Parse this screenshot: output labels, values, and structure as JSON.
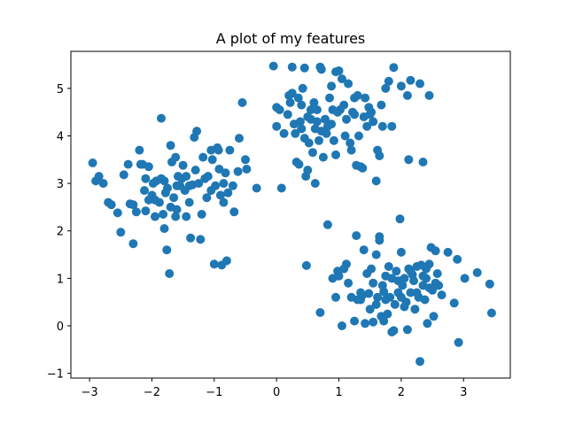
{
  "chart_data": {
    "type": "scatter",
    "title": "A plot of my features",
    "xlabel": "",
    "ylabel": "",
    "xlim": [
      -3.3,
      3.75
    ],
    "ylim": [
      -1.1,
      5.78
    ],
    "xticks": [
      -3,
      -2,
      -1,
      0,
      1,
      2,
      3
    ],
    "yticks": [
      -1,
      0,
      1,
      2,
      3,
      4,
      5
    ],
    "grid": false,
    "color": "#1f77b4",
    "series": [
      {
        "points": [
          [
            -2.95,
            3.43
          ],
          [
            -2.9,
            3.05
          ],
          [
            -2.85,
            3.15
          ],
          [
            -2.78,
            3.0
          ],
          [
            -2.7,
            2.6
          ],
          [
            -2.65,
            2.55
          ],
          [
            -2.55,
            2.38
          ],
          [
            -2.5,
            1.97
          ],
          [
            -2.45,
            3.18
          ],
          [
            -2.38,
            3.4
          ],
          [
            -2.35,
            2.57
          ],
          [
            -2.3,
            2.55
          ],
          [
            -2.3,
            1.73
          ],
          [
            -2.2,
            3.7
          ],
          [
            -2.18,
            3.4
          ],
          [
            -2.15,
            3.4
          ],
          [
            -2.12,
            2.85
          ],
          [
            -2.1,
            2.42
          ],
          [
            -2.1,
            3.1
          ],
          [
            -2.05,
            2.65
          ],
          [
            -2.0,
            2.75
          ],
          [
            -1.98,
            3.0
          ],
          [
            -1.95,
            2.3
          ],
          [
            -1.93,
            3.05
          ],
          [
            -1.88,
            2.6
          ],
          [
            -1.85,
            3.1
          ],
          [
            -1.82,
            2.35
          ],
          [
            -1.8,
            2.05
          ],
          [
            -1.8,
            3.05
          ],
          [
            -1.78,
            2.8
          ],
          [
            -1.76,
            1.6
          ],
          [
            -1.75,
            2.9
          ],
          [
            -1.72,
            1.1
          ],
          [
            -1.7,
            2.5
          ],
          [
            -1.68,
            3.45
          ],
          [
            -1.65,
            2.7
          ],
          [
            -1.62,
            2.3
          ],
          [
            -1.6,
            2.45
          ],
          [
            -1.58,
            3.15
          ],
          [
            -1.55,
            2.95
          ],
          [
            -1.52,
            3.1
          ],
          [
            -1.5,
            3.38
          ],
          [
            -1.47,
            2.85
          ],
          [
            -1.45,
            2.3
          ],
          [
            -1.4,
            2.6
          ],
          [
            -1.38,
            1.85
          ],
          [
            -1.35,
            2.97
          ],
          [
            -1.32,
            3.97
          ],
          [
            -1.3,
            3.28
          ],
          [
            -1.28,
            4.1
          ],
          [
            -1.25,
            3.0
          ],
          [
            -1.22,
            1.82
          ],
          [
            -1.2,
            2.35
          ],
          [
            -1.18,
            3.55
          ],
          [
            -1.15,
            3.1
          ],
          [
            -1.12,
            2.7
          ],
          [
            -1.1,
            3.15
          ],
          [
            -1.05,
            2.85
          ],
          [
            -1.03,
            3.5
          ],
          [
            -1.0,
            1.3
          ],
          [
            -0.98,
            2.95
          ],
          [
            -0.95,
            3.75
          ],
          [
            -0.93,
            3.7
          ],
          [
            -0.92,
            3.3
          ],
          [
            -0.9,
            2.75
          ],
          [
            -0.88,
            1.28
          ],
          [
            -0.85,
            3.0
          ],
          [
            -0.82,
            3.22
          ],
          [
            -0.8,
            1.37
          ],
          [
            -0.78,
            2.8
          ],
          [
            -0.75,
            3.7
          ],
          [
            -0.7,
            2.95
          ],
          [
            -0.68,
            2.4
          ],
          [
            -0.62,
            3.25
          ],
          [
            -0.6,
            3.95
          ],
          [
            -0.55,
            4.7
          ],
          [
            -0.5,
            3.5
          ],
          [
            -0.48,
            3.3
          ],
          [
            -0.32,
            2.9
          ],
          [
            -1.85,
            4.37
          ],
          [
            -1.7,
            3.8
          ],
          [
            -1.62,
            3.55
          ],
          [
            -2.05,
            3.35
          ],
          [
            -1.95,
            2.65
          ],
          [
            -1.45,
            3.15
          ],
          [
            -1.6,
            2.95
          ],
          [
            -2.25,
            2.4
          ],
          [
            -0.85,
            2.6
          ],
          [
            -1.05,
            3.7
          ],
          [
            -1.4,
            2.95
          ]
        ]
      },
      {
        "points": [
          [
            -0.05,
            5.47
          ],
          [
            0.0,
            4.6
          ],
          [
            0.05,
            4.55
          ],
          [
            0.0,
            4.2
          ],
          [
            0.08,
            2.9
          ],
          [
            0.12,
            4.05
          ],
          [
            0.18,
            4.45
          ],
          [
            0.2,
            4.85
          ],
          [
            0.22,
            4.7
          ],
          [
            0.25,
            4.9
          ],
          [
            0.25,
            5.45
          ],
          [
            0.28,
            4.25
          ],
          [
            0.3,
            4.05
          ],
          [
            0.32,
            3.45
          ],
          [
            0.35,
            4.8
          ],
          [
            0.36,
            3.4
          ],
          [
            0.38,
            4.3
          ],
          [
            0.4,
            4.15
          ],
          [
            0.42,
            5.0
          ],
          [
            0.45,
            5.43
          ],
          [
            0.45,
            3.95
          ],
          [
            0.47,
            3.15
          ],
          [
            0.5,
            4.4
          ],
          [
            0.5,
            3.28
          ],
          [
            0.52,
            3.85
          ],
          [
            0.55,
            4.55
          ],
          [
            0.55,
            4.35
          ],
          [
            0.58,
            3.65
          ],
          [
            0.6,
            4.7
          ],
          [
            0.62,
            4.15
          ],
          [
            0.62,
            3.0
          ],
          [
            0.65,
            4.55
          ],
          [
            0.68,
            3.9
          ],
          [
            0.7,
            5.45
          ],
          [
            0.72,
            5.4
          ],
          [
            0.72,
            4.1
          ],
          [
            0.75,
            3.55
          ],
          [
            0.78,
            4.35
          ],
          [
            0.8,
            4.05
          ],
          [
            0.82,
            4.2
          ],
          [
            0.85,
            4.8
          ],
          [
            0.88,
            5.05
          ],
          [
            0.9,
            4.55
          ],
          [
            0.92,
            3.9
          ],
          [
            0.95,
            3.6
          ],
          [
            0.95,
            5.35
          ],
          [
            0.98,
            4.5
          ],
          [
            1.0,
            5.37
          ],
          [
            1.02,
            4.55
          ],
          [
            1.05,
            5.2
          ],
          [
            1.08,
            4.65
          ],
          [
            1.1,
            4.0
          ],
          [
            1.12,
            4.35
          ],
          [
            1.15,
            5.1
          ],
          [
            1.18,
            3.85
          ],
          [
            1.2,
            3.7
          ],
          [
            1.22,
            4.5
          ],
          [
            1.25,
            4.8
          ],
          [
            1.28,
            3.38
          ],
          [
            1.3,
            4.85
          ],
          [
            1.32,
            4.0
          ],
          [
            1.35,
            3.35
          ],
          [
            1.38,
            3.32
          ],
          [
            1.4,
            4.4
          ],
          [
            1.42,
            4.8
          ],
          [
            1.45,
            4.2
          ],
          [
            1.5,
            4.45
          ],
          [
            1.52,
            4.5
          ],
          [
            1.55,
            4.3
          ],
          [
            1.6,
            3.05
          ],
          [
            1.62,
            3.7
          ],
          [
            1.65,
            3.58
          ],
          [
            1.7,
            4.2
          ],
          [
            1.75,
            5.0
          ],
          [
            1.8,
            5.15
          ],
          [
            1.85,
            4.2
          ],
          [
            1.88,
            5.44
          ],
          [
            2.0,
            5.05
          ],
          [
            2.1,
            4.85
          ],
          [
            2.12,
            3.5
          ],
          [
            2.15,
            5.17
          ],
          [
            2.3,
            5.1
          ],
          [
            2.35,
            3.45
          ],
          [
            2.45,
            4.85
          ],
          [
            1.48,
            4.6
          ],
          [
            0.88,
            4.25
          ],
          [
            1.25,
            4.45
          ],
          [
            0.4,
            4.65
          ],
          [
            0.65,
            4.3
          ],
          [
            1.68,
            4.65
          ]
        ]
      },
      {
        "points": [
          [
            0.48,
            1.27
          ],
          [
            0.7,
            0.28
          ],
          [
            0.82,
            2.13
          ],
          [
            0.9,
            1.0
          ],
          [
            0.95,
            0.6
          ],
          [
            0.98,
            1.15
          ],
          [
            1.0,
            1.05
          ],
          [
            1.05,
            0.0
          ],
          [
            1.08,
            1.2
          ],
          [
            1.12,
            1.3
          ],
          [
            1.15,
            0.9
          ],
          [
            1.2,
            0.6
          ],
          [
            1.25,
            0.1
          ],
          [
            1.28,
            1.9
          ],
          [
            1.3,
            0.55
          ],
          [
            1.35,
            0.7
          ],
          [
            1.38,
            0.65
          ],
          [
            1.4,
            1.6
          ],
          [
            1.42,
            0.05
          ],
          [
            1.45,
            1.1
          ],
          [
            1.48,
            0.68
          ],
          [
            1.5,
            0.35
          ],
          [
            1.52,
            1.2
          ],
          [
            1.55,
            0.08
          ],
          [
            1.6,
            1.5
          ],
          [
            1.62,
            0.6
          ],
          [
            1.65,
            1.88
          ],
          [
            1.65,
            1.8
          ],
          [
            1.68,
            0.2
          ],
          [
            1.7,
            0.85
          ],
          [
            1.72,
            0.1
          ],
          [
            1.75,
            1.05
          ],
          [
            1.78,
            0.25
          ],
          [
            1.8,
            1.25
          ],
          [
            1.82,
            0.6
          ],
          [
            1.85,
            1.0
          ],
          [
            1.88,
            -0.1
          ],
          [
            1.9,
            0.45
          ],
          [
            1.92,
            1.15
          ],
          [
            1.95,
            0.7
          ],
          [
            1.98,
            2.25
          ],
          [
            2.0,
            1.55
          ],
          [
            2.02,
            0.85
          ],
          [
            2.05,
            1.0
          ],
          [
            2.08,
            0.5
          ],
          [
            2.1,
            -0.08
          ],
          [
            2.12,
            1.2
          ],
          [
            2.15,
            0.7
          ],
          [
            2.18,
            1.08
          ],
          [
            2.2,
            0.95
          ],
          [
            2.22,
            0.35
          ],
          [
            2.25,
            1.25
          ],
          [
            2.28,
            0.6
          ],
          [
            2.3,
            -0.75
          ],
          [
            2.32,
            1.28
          ],
          [
            2.35,
            0.85
          ],
          [
            2.38,
            0.55
          ],
          [
            2.4,
            1.0
          ],
          [
            2.42,
            0.05
          ],
          [
            2.45,
            1.3
          ],
          [
            2.48,
            1.65
          ],
          [
            2.5,
            0.75
          ],
          [
            2.52,
            0.2
          ],
          [
            2.55,
            1.58
          ],
          [
            2.58,
            1.1
          ],
          [
            2.6,
            0.85
          ],
          [
            2.65,
            0.65
          ],
          [
            2.75,
            1.55
          ],
          [
            2.85,
            0.48
          ],
          [
            2.9,
            1.4
          ],
          [
            2.92,
            -0.35
          ],
          [
            3.02,
            1.0
          ],
          [
            3.22,
            1.12
          ],
          [
            3.42,
            0.88
          ],
          [
            3.45,
            0.27
          ],
          [
            1.85,
            -0.13
          ],
          [
            2.05,
            0.4
          ],
          [
            1.72,
            0.72
          ],
          [
            2.35,
            1.05
          ],
          [
            1.6,
            0.45
          ],
          [
            2.45,
            0.8
          ],
          [
            1.95,
            0.95
          ],
          [
            2.25,
            0.7
          ],
          [
            1.75,
            0.55
          ],
          [
            2.15,
            1.15
          ],
          [
            2.55,
            0.9
          ],
          [
            1.35,
            0.55
          ],
          [
            2.4,
            1.2
          ],
          [
            1.55,
            0.9
          ],
          [
            2.0,
            0.6
          ]
        ]
      }
    ]
  }
}
